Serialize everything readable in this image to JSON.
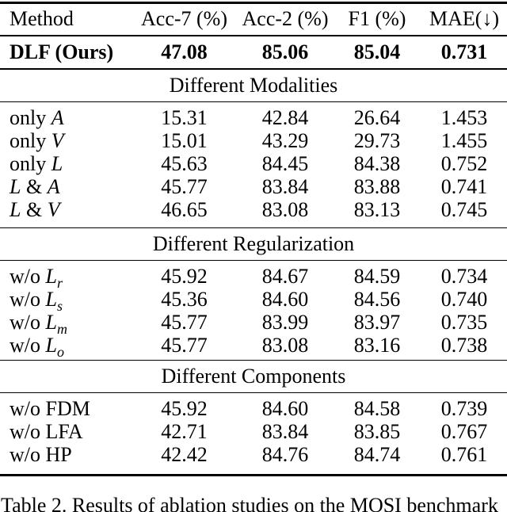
{
  "table": {
    "columns": [
      "Method",
      "Acc-7 (%)",
      "Acc-2 (%)",
      "F1 (%)",
      "MAE(↓)"
    ],
    "highlight_row": {
      "label": {
        "pre": "DLF (Ours)",
        "m1": "",
        "sub": "",
        "mid": "",
        "m2": ""
      },
      "values": [
        "47.08",
        "85.06",
        "85.04",
        "0.731"
      ]
    },
    "sections": [
      {
        "title": "Different Modalities",
        "rows": [
          {
            "label": {
              "pre": "only ",
              "m1": "A",
              "sub": "",
              "mid": "",
              "m2": ""
            },
            "values": [
              "15.31",
              "42.84",
              "26.64",
              "1.453"
            ]
          },
          {
            "label": {
              "pre": "only ",
              "m1": "V",
              "sub": "",
              "mid": "",
              "m2": ""
            },
            "values": [
              "15.01",
              "43.29",
              "29.73",
              "1.455"
            ]
          },
          {
            "label": {
              "pre": "only ",
              "m1": "L",
              "sub": "",
              "mid": "",
              "m2": ""
            },
            "values": [
              "45.63",
              "84.45",
              "84.38",
              "0.752"
            ]
          },
          {
            "label": {
              "pre": "",
              "m1": "L",
              "sub": "",
              "mid": " & ",
              "m2": "A"
            },
            "values": [
              "45.77",
              "83.84",
              "83.88",
              "0.741"
            ]
          },
          {
            "label": {
              "pre": "",
              "m1": "L",
              "sub": "",
              "mid": " & ",
              "m2": "V"
            },
            "values": [
              "46.65",
              "83.08",
              "83.13",
              "0.745"
            ]
          }
        ]
      },
      {
        "title": "Different Regularization",
        "rows": [
          {
            "label": {
              "pre": "w/o ",
              "m1": "L",
              "sub": "r",
              "mid": "",
              "m2": ""
            },
            "values": [
              "45.92",
              "84.67",
              "84.59",
              "0.734"
            ]
          },
          {
            "label": {
              "pre": "w/o ",
              "m1": "L",
              "sub": "s",
              "mid": "",
              "m2": ""
            },
            "values": [
              "45.36",
              "84.60",
              "84.56",
              "0.740"
            ]
          },
          {
            "label": {
              "pre": "w/o ",
              "m1": "L",
              "sub": "m",
              "mid": "",
              "m2": ""
            },
            "values": [
              "45.77",
              "83.99",
              "83.97",
              "0.735"
            ]
          },
          {
            "label": {
              "pre": "w/o ",
              "m1": "L",
              "sub": "o",
              "mid": "",
              "m2": ""
            },
            "values": [
              "45.77",
              "83.08",
              "83.16",
              "0.738"
            ]
          }
        ]
      },
      {
        "title": "Different Components",
        "rows": [
          {
            "label": {
              "pre": "w/o FDM",
              "m1": "",
              "sub": "",
              "mid": "",
              "m2": ""
            },
            "values": [
              "45.92",
              "84.60",
              "84.58",
              "0.739"
            ]
          },
          {
            "label": {
              "pre": "w/o LFA",
              "m1": "",
              "sub": "",
              "mid": "",
              "m2": ""
            },
            "values": [
              "42.71",
              "83.84",
              "83.85",
              "0.767"
            ]
          },
          {
            "label": {
              "pre": "w/o HP",
              "m1": "",
              "sub": "",
              "mid": "",
              "m2": ""
            },
            "values": [
              "42.42",
              "84.76",
              "84.74",
              "0.761"
            ]
          }
        ]
      }
    ]
  },
  "caption": "Table 2. Results of ablation studies on the MOSI benchmark"
}
